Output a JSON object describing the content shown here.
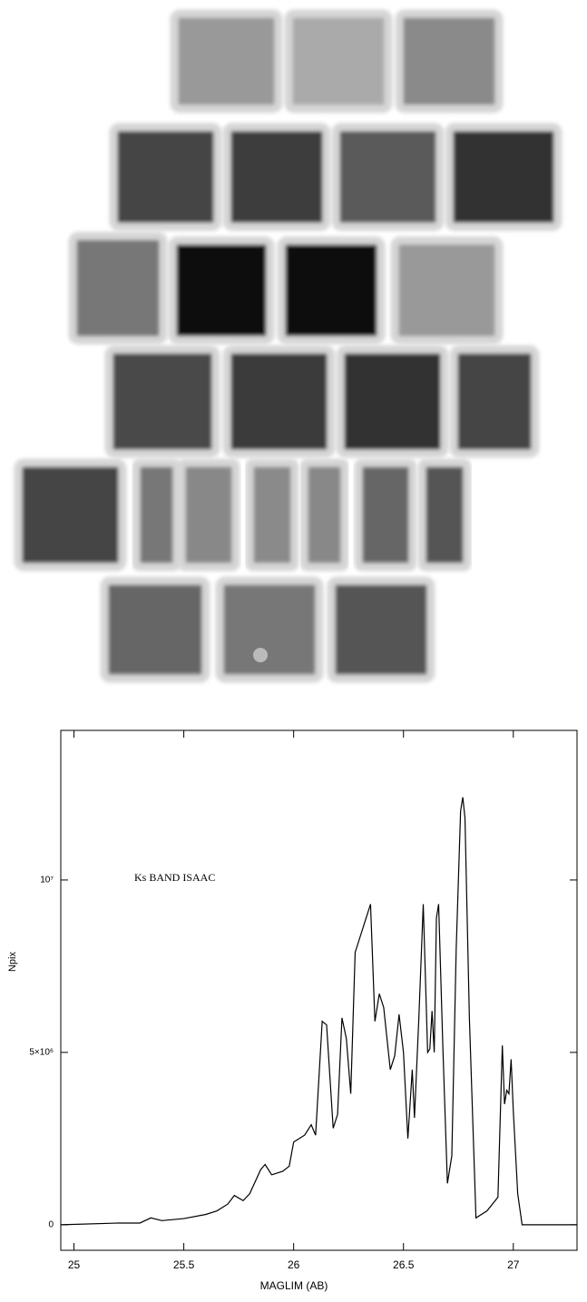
{
  "chart_data": {
    "type": "line",
    "xlabel": "MAGLIM (AB)",
    "ylabel": "Npix",
    "annotation": "Ks BAND ISAAC",
    "color": "#000000",
    "xlim": [
      24.94,
      27.29
    ],
    "xticks": [
      25,
      25.5,
      26,
      26.5,
      27
    ],
    "ylim": [
      -740000,
      14340000
    ],
    "yticks": [
      0,
      {
        "value": 5000000,
        "label": "5×10⁶"
      },
      {
        "value": 10000000,
        "label": "10⁷"
      }
    ],
    "x": [
      24.94,
      25.2,
      25.3,
      25.35,
      25.4,
      25.5,
      25.6,
      25.65,
      25.7,
      25.73,
      25.77,
      25.8,
      25.85,
      25.87,
      25.9,
      25.95,
      25.98,
      26.0,
      26.05,
      26.08,
      26.1,
      26.13,
      26.15,
      26.18,
      26.2,
      26.22,
      26.24,
      26.26,
      26.28,
      26.3,
      26.33,
      26.35,
      26.37,
      26.39,
      26.41,
      26.44,
      26.46,
      26.48,
      26.5,
      26.52,
      26.54,
      26.55,
      26.57,
      26.59,
      26.61,
      26.62,
      26.63,
      26.64,
      26.65,
      26.66,
      26.68,
      26.7,
      26.72,
      26.74,
      26.76,
      26.77,
      26.78,
      26.8,
      26.83,
      26.88,
      26.93,
      26.95,
      26.96,
      26.97,
      26.98,
      26.99,
      27.0,
      27.02,
      27.04,
      27.29
    ],
    "values": [
      0,
      50000,
      50000,
      200000,
      120000,
      180000,
      300000,
      400000,
      600000,
      850000,
      700000,
      900000,
      1600000,
      1750000,
      1450000,
      1550000,
      1700000,
      2400000,
      2600000,
      2900000,
      2600000,
      5900000,
      5800000,
      2800000,
      3200000,
      6000000,
      5400000,
      3800000,
      7900000,
      8300000,
      8900000,
      9300000,
      5900000,
      6700000,
      6300000,
      4500000,
      4900000,
      6100000,
      5000000,
      2500000,
      4500000,
      3100000,
      6000000,
      9300000,
      5000000,
      5100000,
      6200000,
      5000000,
      8900000,
      9300000,
      5000000,
      1200000,
      2000000,
      8000000,
      12000000,
      12400000,
      11800000,
      6000000,
      200000,
      400000,
      800000,
      5200000,
      3500000,
      3900000,
      3800000,
      4800000,
      3300000,
      900000,
      0,
      0
    ]
  }
}
